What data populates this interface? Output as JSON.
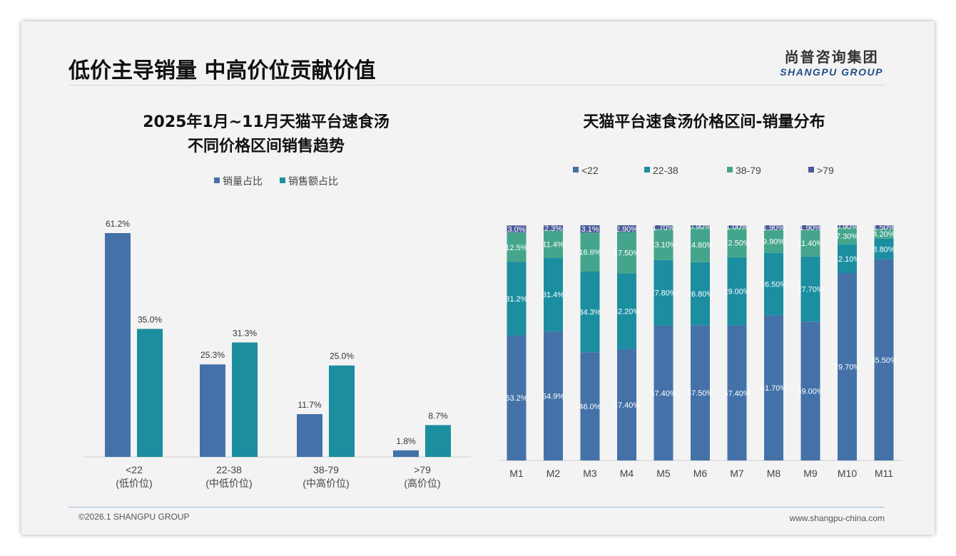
{
  "page": {
    "title": "低价主导销量 中高价位贡献价值",
    "logo_cn": "尚普咨询集团",
    "logo_en": "SHANGPU GROUP",
    "footer_left": "©2026.1 SHANGPU GROUP",
    "footer_right": "www.shangpu-china.com"
  },
  "colors": {
    "c1": "#4472a8",
    "c2": "#1b8ea0",
    "c3": "#45a58c",
    "c4": "#4a5a9a"
  },
  "chart_data": [
    {
      "type": "bar",
      "title": [
        "2025年1月~11月天猫平台速食汤",
        "不同价格区间销售趋势"
      ],
      "categories": [
        [
          "<22",
          "(低价位)"
        ],
        [
          "22-38",
          "(中低价位)"
        ],
        [
          "38-79",
          "(中高价位)"
        ],
        [
          ">79",
          "(高价位)"
        ]
      ],
      "series": [
        {
          "name": "销量占比",
          "values": [
            61.2,
            25.3,
            11.7,
            1.8
          ],
          "labels": [
            "61.2%",
            "25.3%",
            "11.7%",
            "1.8%"
          ]
        },
        {
          "name": "销售额占比",
          "values": [
            35.0,
            31.3,
            25.0,
            8.7
          ],
          "labels": [
            "35.0%",
            "31.3%",
            "25.0%",
            "8.7%"
          ]
        }
      ],
      "legend": "top",
      "ylim": [
        0,
        65
      ]
    },
    {
      "type": "bar",
      "stacked": true,
      "title": "天猫平台速食汤价格区间-销量分布",
      "categories": [
        "M1",
        "M2",
        "M3",
        "M4",
        "M5",
        "M6",
        "M7",
        "M8",
        "M9",
        "M10",
        "M11"
      ],
      "series": [
        {
          "name": "<22",
          "values": [
            53.2,
            54.9,
            46.0,
            47.4,
            57.4,
            57.5,
            57.4,
            61.7,
            59.0,
            79.7,
            85.5
          ],
          "labels": [
            "53.2%",
            "54.9%",
            "46.0%",
            "47.40%",
            "57.40%",
            "57.50%",
            "57.40%",
            "61.70%",
            "59.00%",
            "79.70%",
            "85.50%"
          ]
        },
        {
          "name": "22-38",
          "values": [
            31.2,
            31.4,
            34.3,
            32.2,
            27.8,
            26.8,
            29.0,
            26.5,
            27.7,
            12.1,
            8.8
          ],
          "labels": [
            "31.2%",
            "31.4%",
            "34.3%",
            "32.20%",
            "27.80%",
            "26.80%",
            "29.00%",
            "26.50%",
            "27.70%",
            "12.10%",
            "8.80%"
          ]
        },
        {
          "name": "38-79",
          "values": [
            12.5,
            11.4,
            16.6,
            17.5,
            13.1,
            14.8,
            12.5,
            9.9,
            11.4,
            7.3,
            4.2
          ],
          "labels": [
            "12.5%",
            "11.4%",
            "16.6%",
            "17.50%",
            "13.10%",
            "14.80%",
            "12.50%",
            "9.90%",
            "11.40%",
            "7.30%",
            "4.20%"
          ]
        },
        {
          "name": ">79",
          "values": [
            3.0,
            2.3,
            3.1,
            2.9,
            1.7,
            0.9,
            1.0,
            1.9,
            1.9,
            0.9,
            1.5
          ],
          "labels": [
            "3.0%",
            "2.3%",
            "3.1%",
            "2.90%",
            "1.70%",
            "0.90%",
            "1.00%",
            "1.90%",
            "1.90%",
            "0.90%",
            "1.50%"
          ]
        }
      ],
      "legend": "top",
      "ylim": [
        0,
        100
      ]
    }
  ]
}
